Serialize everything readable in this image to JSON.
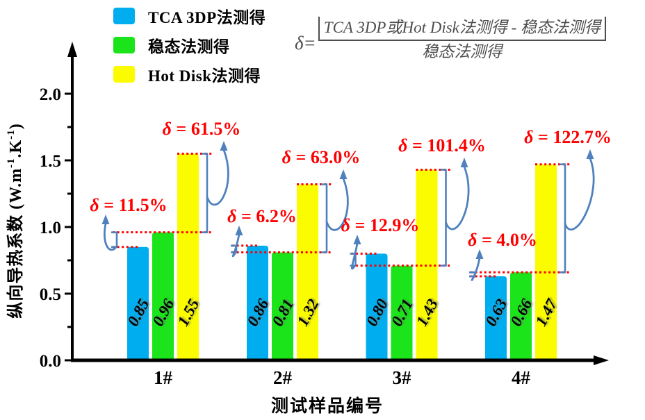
{
  "legend": {
    "items": [
      {
        "label": "TCA 3DP法测得",
        "color": "#00AEEF"
      },
      {
        "label": "稳态法测得",
        "color": "#1BE41B"
      },
      {
        "label": "Hot Disk法测得",
        "color": "#FCFC00"
      }
    ]
  },
  "formula": {
    "lhs": "δ=",
    "numerator": "TCA 3DP或Hot Disk法测得 - 稳态法测得",
    "denominator": "稳态法测得"
  },
  "chart_data": {
    "type": "bar",
    "categories": [
      "1#",
      "2#",
      "3#",
      "4#"
    ],
    "series": [
      {
        "name": "TCA 3DP法测得",
        "color": "#00AEEF",
        "values": [
          0.85,
          0.86,
          0.8,
          0.63
        ]
      },
      {
        "name": "稳态法测得",
        "color": "#1BE41B",
        "values": [
          0.96,
          0.81,
          0.71,
          0.66
        ]
      },
      {
        "name": "Hot Disk法测得",
        "color": "#FCFC00",
        "values": [
          1.55,
          1.32,
          1.43,
          1.47
        ]
      }
    ],
    "bar_value_labels": [
      [
        "0.85",
        "0.96",
        "1.55"
      ],
      [
        "0.86",
        "0.81",
        "1.32"
      ],
      [
        "0.80",
        "0.71",
        "1.43"
      ],
      [
        "0.63",
        "0.66",
        "1.47"
      ]
    ],
    "ylabel": "纵向导热系数 (W.m⁻¹.K⁻¹)",
    "ylabel_parts": [
      {
        "text": "纵向导热系数 (W.m"
      },
      {
        "text": "-1",
        "sup": true
      },
      {
        "text": ".K"
      },
      {
        "text": "-1",
        "sup": true
      },
      {
        "text": ")"
      }
    ],
    "xlabel": "测试样品编号",
    "ylim": [
      0,
      2.2
    ],
    "yticks": [
      "0.0",
      "0.5",
      "1.0",
      "1.5",
      "2.0"
    ],
    "grid": false,
    "legend_position": "top-left",
    "annotations": [
      {
        "group": "1#",
        "series": "TCA 3DP法测得",
        "label": "δ = 11.5%"
      },
      {
        "group": "1#",
        "series": "Hot Disk法测得",
        "label": "δ = 61.5%"
      },
      {
        "group": "2#",
        "series": "TCA 3DP法测得",
        "label": "δ = 6.2%"
      },
      {
        "group": "2#",
        "series": "Hot Disk法测得",
        "label": "δ = 63.0%"
      },
      {
        "group": "3#",
        "series": "TCA 3DP法测得",
        "label": "δ = 12.9%"
      },
      {
        "group": "3#",
        "series": "Hot Disk法测得",
        "label": "δ = 101.4%"
      },
      {
        "group": "4#",
        "series": "TCA 3DP法测得",
        "label": "δ = 4.0%"
      },
      {
        "group": "4#",
        "series": "Hot Disk法测得",
        "label": "δ = 122.7%"
      }
    ],
    "colors": {
      "axis": "#000000",
      "annotation_text": "#FF0000",
      "annotation_dotted_line": "#FF0000",
      "bracket_arrow": "#4F81BD"
    }
  }
}
